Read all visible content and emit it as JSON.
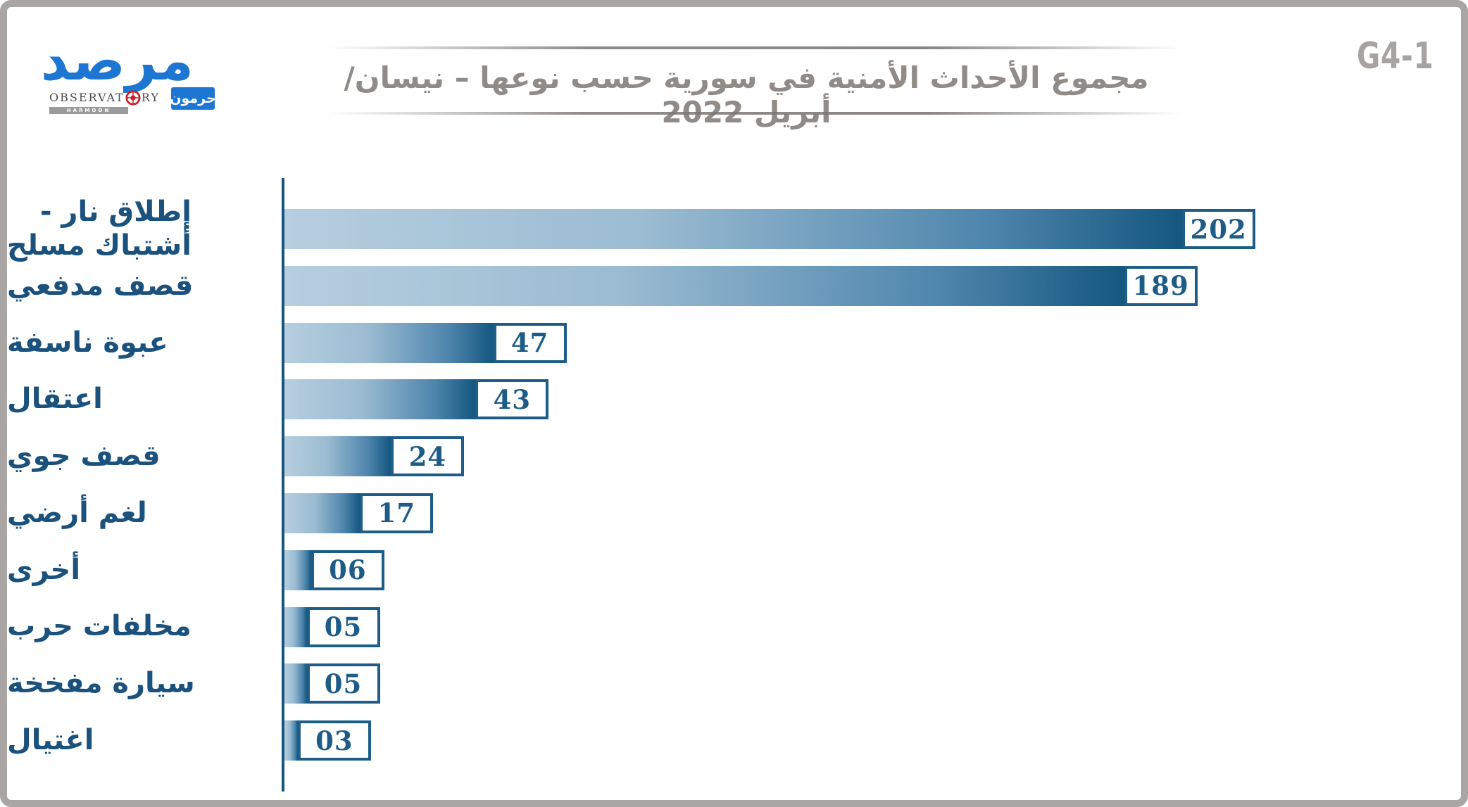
{
  "page": {
    "code_label": "G4-1"
  },
  "logo": {
    "wordmark_ar": "مرصد",
    "observatory_left": "OBSERVAT",
    "observatory_right": "RY",
    "harmoon_text": "HARMOON",
    "badge_ar": "حرمون"
  },
  "title": {
    "text": "مجموع الأحداث الأمنية في سورية حسب نوعها – نيسان/ أبريل 2022"
  },
  "chart_data": {
    "type": "bar",
    "orientation": "horizontal",
    "title": "مجموع الأحداث الأمنية في سورية حسب نوعها – نيسان/ أبريل 2022",
    "grid": false,
    "legend": false,
    "xlim": [
      0,
      215
    ],
    "value_label_style": "boxed-at-bar-end",
    "categories": [
      "إطلاق نار - أشتباك مسلح",
      "قصف مدفعي",
      "عبوة ناسفة",
      "اعتقال",
      "قصف جوي",
      "لغم أرضي",
      "أخرى",
      "مخلفات حرب",
      "سيارة مفخخة",
      "اغتيال"
    ],
    "values": [
      202,
      189,
      47,
      43,
      24,
      17,
      6,
      5,
      5,
      3
    ],
    "rows": [
      {
        "label": "إطلاق نار -\nأشتباك مسلح",
        "value": 202,
        "display": "202"
      },
      {
        "label": "قصف مدفعي",
        "value": 189,
        "display": "189"
      },
      {
        "label": "عبوة ناسفة",
        "value": 47,
        "display": "47"
      },
      {
        "label": "اعتقال",
        "value": 43,
        "display": "43"
      },
      {
        "label": "قصف جوي",
        "value": 24,
        "display": "24"
      },
      {
        "label": "لغم أرضي",
        "value": 17,
        "display": "17"
      },
      {
        "label": "أخرى",
        "value": 6,
        "display": "06"
      },
      {
        "label": "مخلفات حرب",
        "value": 5,
        "display": "05"
      },
      {
        "label": "سيارة مفخخة",
        "value": 5,
        "display": "05"
      },
      {
        "label": "اغتيال",
        "value": 3,
        "display": "03"
      }
    ]
  },
  "colors": {
    "bar_gradient_start": "#b6cedf",
    "bar_gradient_end": "#14577f",
    "axis": "#15567f",
    "label_text": "#1b527d",
    "value_box_border": "#1d5d87",
    "value_text": "#1d5c87",
    "title_text": "#908b87",
    "code_label_text": "#a7a3a0",
    "page_border": "#a9a5a2",
    "logo_blue": "#1d76d2",
    "target_red": "#cc2128"
  }
}
